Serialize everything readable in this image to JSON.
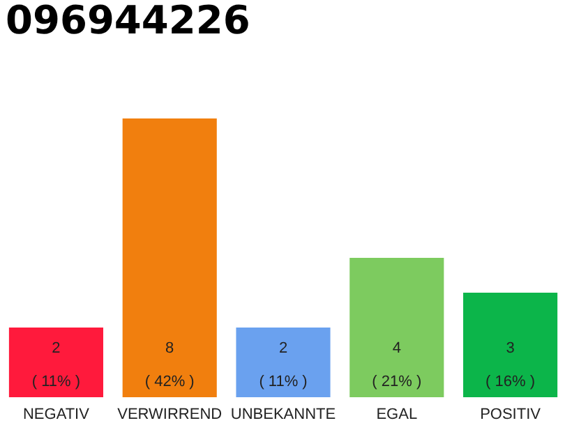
{
  "chart_data": {
    "type": "bar",
    "title": "096944226",
    "categories": [
      "NEGATIV",
      "VERWIRREND",
      "UNBEKANNTE",
      "EGAL",
      "POSITIV"
    ],
    "values": [
      2,
      8,
      2,
      4,
      3
    ],
    "colors": [
      "#ff1a3c",
      "#f17f0e",
      "#6aa1ef",
      "#7dcb5f",
      "#0cb54a"
    ],
    "value_labels": [
      "2\n( 11% )",
      "8\n( 42% )",
      "2\n( 11% )",
      "4\n( 21% )",
      "3\n( 16% )"
    ]
  }
}
